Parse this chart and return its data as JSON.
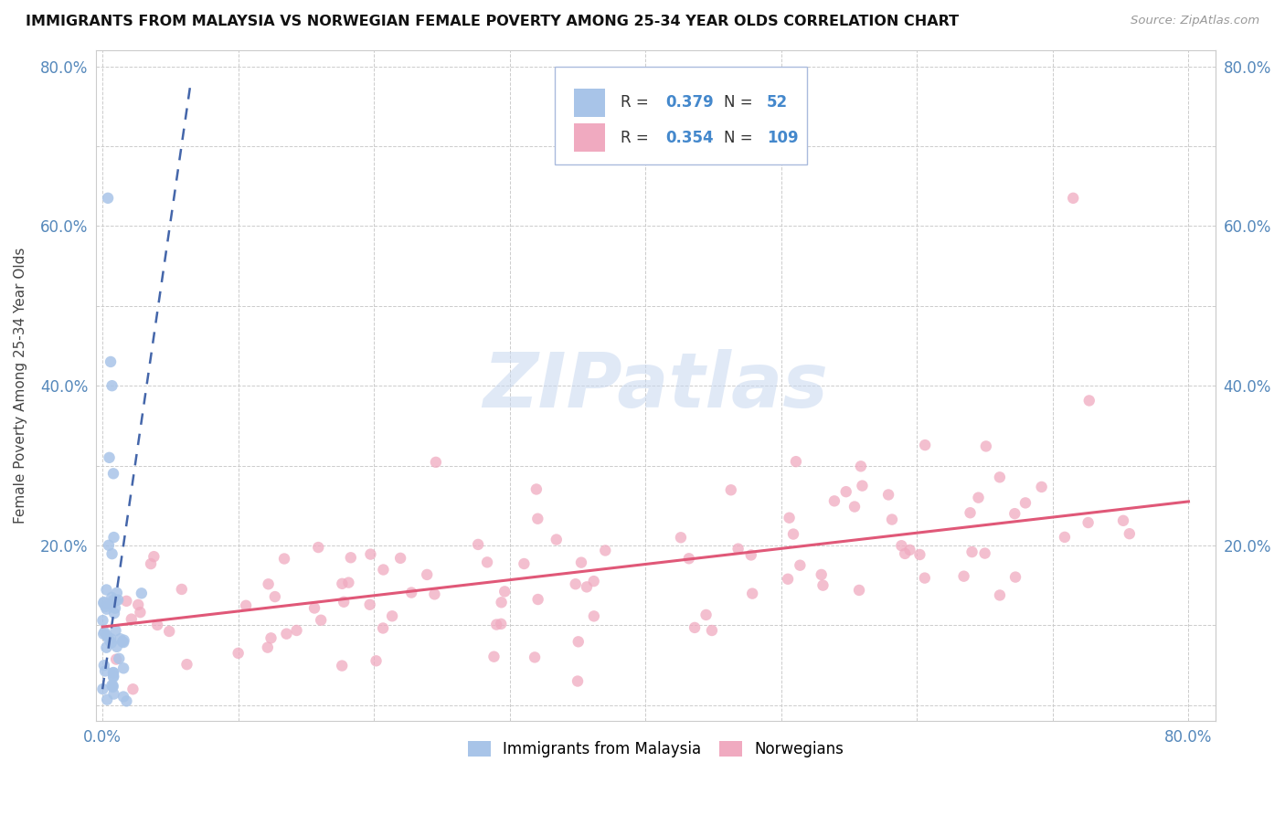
{
  "title": "IMMIGRANTS FROM MALAYSIA VS NORWEGIAN FEMALE POVERTY AMONG 25-34 YEAR OLDS CORRELATION CHART",
  "source": "Source: ZipAtlas.com",
  "ylabel": "Female Poverty Among 25-34 Year Olds",
  "xlim": [
    -0.005,
    0.82
  ],
  "ylim": [
    -0.02,
    0.82
  ],
  "malaysia_R": 0.379,
  "malaysia_N": 52,
  "norwegian_R": 0.354,
  "norwegian_N": 109,
  "malaysia_color": "#a8c4e8",
  "norwegian_color": "#f0aac0",
  "malaysia_line_color": "#4466aa",
  "norwegian_line_color": "#e05878",
  "value_color": "#4488cc",
  "title_color": "#111111",
  "source_color": "#999999",
  "tick_color": "#5588bb",
  "grid_color": "#cccccc",
  "watermark_color": "#c8d8f0",
  "background": "#ffffff",
  "xtick_positions": [
    0.0,
    0.1,
    0.2,
    0.3,
    0.4,
    0.5,
    0.6,
    0.7,
    0.8
  ],
  "ytick_positions": [
    0.0,
    0.1,
    0.2,
    0.3,
    0.4,
    0.5,
    0.6,
    0.7,
    0.8
  ],
  "xlabels": [
    "0.0%",
    "",
    "",
    "",
    "",
    "",
    "",
    "",
    "80.0%"
  ],
  "ylabels": [
    "",
    "",
    "20.0%",
    "",
    "40.0%",
    "",
    "60.0%",
    "",
    "80.0%"
  ],
  "mal_line_x0": 0.0,
  "mal_line_x1": 0.065,
  "mal_line_y0": 0.02,
  "mal_line_y1": 0.78,
  "nor_line_x0": 0.0,
  "nor_line_x1": 0.8,
  "nor_line_y0": 0.098,
  "nor_line_y1": 0.255
}
